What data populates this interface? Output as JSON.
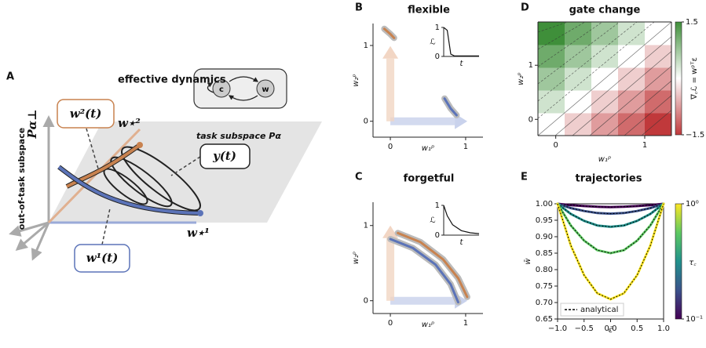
{
  "panel_a": {
    "letter": "A",
    "title": "effective dynamics",
    "node_c": "c",
    "node_w": "w",
    "w2_label": "w²(t)",
    "w_star2": "w⋆²",
    "task_subspace": "task subspace Pα",
    "y_label": "y(t)",
    "out_of_task": "out-of-task subspace",
    "p_perp": "Pα⊥",
    "w1_label": "w¹(t)",
    "w_star1": "w⋆¹"
  },
  "chart_data": [
    {
      "type": "line",
      "letter": "B",
      "title": "flexible",
      "xlabel": "w₁ᵖ",
      "ylabel": "w₂ᵖ",
      "xlim": [
        -0.23,
        1.23
      ],
      "ylim": [
        -0.21,
        1.29
      ],
      "xticks": [
        0,
        1
      ],
      "yticks": [
        0,
        1
      ],
      "series": [
        {
          "color": "#c8824f",
          "x": [
            -0.08,
            0.0,
            0.05
          ],
          "values": [
            1.22,
            1.15,
            1.1
          ]
        },
        {
          "color": "#5b73b8",
          "x": [
            0.72,
            0.8,
            0.88
          ],
          "values": [
            0.3,
            0.17,
            0.08
          ]
        }
      ],
      "inset": {
        "xlabel": "t",
        "ylabel": "ℒ",
        "xlim": [
          0,
          1
        ],
        "ylim": [
          0,
          1
        ],
        "yticks": [
          0,
          1
        ],
        "x": [
          0,
          0.1,
          0.2,
          0.3,
          1
        ],
        "values": [
          1,
          0.9,
          0.08,
          0.02,
          0.02
        ]
      }
    },
    {
      "type": "line",
      "letter": "C",
      "title": "forgetful",
      "xlabel": "w₁ᵖ",
      "ylabel": "w₂ᵖ",
      "xlim": [
        -0.23,
        1.23
      ],
      "ylim": [
        -0.17,
        1.31
      ],
      "xticks": [
        0,
        1
      ],
      "yticks": [
        0,
        1
      ],
      "series": [
        {
          "color": "#c8824f",
          "x": [
            0.1,
            0.4,
            0.7,
            0.9,
            1.02
          ],
          "values": [
            0.9,
            0.78,
            0.55,
            0.3,
            0.05
          ]
        },
        {
          "color": "#5b73b8",
          "x": [
            0,
            0.3,
            0.6,
            0.8,
            0.9
          ],
          "values": [
            0.82,
            0.7,
            0.48,
            0.22,
            -0.02
          ]
        }
      ],
      "inset": {
        "xlabel": "t",
        "ylabel": "ℒ",
        "xlim": [
          0,
          1
        ],
        "ylim": [
          0,
          1
        ],
        "yticks": [
          0,
          1
        ],
        "x": [
          0,
          0.1,
          0.25,
          0.5,
          0.75,
          1
        ],
        "values": [
          1,
          0.65,
          0.35,
          0.15,
          0.08,
          0.05
        ]
      }
    },
    {
      "type": "heatmap",
      "letter": "D",
      "title": "gate change",
      "xlabel": "w₁ᵖ",
      "ylabel": "w₂ᵖ",
      "xlim": [
        -0.2,
        1.3
      ],
      "ylim": [
        -0.3,
        1.8
      ],
      "xticks": [
        0,
        1
      ],
      "yticks": [
        0,
        1
      ],
      "x": [
        -0.05,
        0.25,
        0.55,
        0.85,
        1.15
      ],
      "y": [
        -0.09,
        0.33,
        0.75,
        1.17,
        1.59
      ],
      "z": [
        [
          0,
          -0.375,
          -0.75,
          -1.125,
          -1.5
        ],
        [
          0.375,
          0,
          -0.375,
          -0.75,
          -1.125
        ],
        [
          0.75,
          0.375,
          0,
          -0.375,
          -0.75
        ],
        [
          1.125,
          0.75,
          0.375,
          0,
          -0.375
        ],
        [
          1.5,
          1.125,
          0.75,
          0.375,
          0
        ]
      ],
      "colorbar": {
        "label": "∇꜀ℒ = wᵖᵀε",
        "lim": [
          -1.5,
          1.5
        ],
        "ticks": [
          1.5,
          {
            "value": -1.5,
            "label": "−1.5"
          }
        ]
      }
    },
    {
      "type": "line",
      "letter": "E",
      "title": "trajectories",
      "xlabel": "c̄",
      "ylabel": "w̄",
      "xlim": [
        -1,
        1
      ],
      "ylim": [
        0.65,
        1.0
      ],
      "xticks": [
        {
          "value": -1,
          "label": "−1.0"
        },
        {
          "value": -0.5,
          "label": "−0.5"
        },
        {
          "value": 0,
          "label": "0.0"
        },
        {
          "value": 0.5,
          "label": "0.5"
        },
        {
          "value": 1,
          "label": "1.0"
        }
      ],
      "yticks": [
        {
          "value": 0.65,
          "label": "0.65"
        },
        {
          "value": 0.7,
          "label": "0.70"
        },
        {
          "value": 0.75,
          "label": "0.75"
        },
        {
          "value": 0.8,
          "label": "0.80"
        },
        {
          "value": 0.85,
          "label": "0.85"
        },
        {
          "value": 0.9,
          "label": "0.90"
        },
        {
          "value": 0.95,
          "label": "0.95"
        },
        {
          "value": 1.0,
          "label": "1.00"
        }
      ],
      "x": [
        -1,
        -0.75,
        -0.5,
        -0.25,
        0,
        0.25,
        0.5,
        0.75,
        1
      ],
      "series": [
        {
          "color": "#440154",
          "values": [
            1.0,
            0.996,
            0.993,
            0.991,
            0.99,
            0.991,
            0.993,
            0.996,
            1.0
          ]
        },
        {
          "color": "#3b528b",
          "values": [
            1.0,
            0.987,
            0.978,
            0.972,
            0.97,
            0.972,
            0.978,
            0.987,
            1.0
          ]
        },
        {
          "color": "#21918c",
          "values": [
            1.0,
            0.969,
            0.948,
            0.934,
            0.93,
            0.934,
            0.948,
            0.969,
            1.0
          ]
        },
        {
          "color": "#5ec962",
          "values": [
            1.0,
            0.934,
            0.888,
            0.859,
            0.85,
            0.859,
            0.888,
            0.934,
            1.0
          ]
        },
        {
          "color": "#fde725",
          "values": [
            1.0,
            0.873,
            0.783,
            0.728,
            0.71,
            0.728,
            0.783,
            0.873,
            1.0
          ]
        }
      ],
      "reference": {
        "name": "analytical",
        "color": "#000000"
      },
      "colorbar": {
        "label": "τ꜀",
        "log": true,
        "lim": [
          0.1,
          1
        ],
        "ticks": [
          {
            "value": 1,
            "label": "10⁰"
          },
          {
            "value": 0.1,
            "label": "10⁻¹"
          }
        ]
      }
    }
  ]
}
